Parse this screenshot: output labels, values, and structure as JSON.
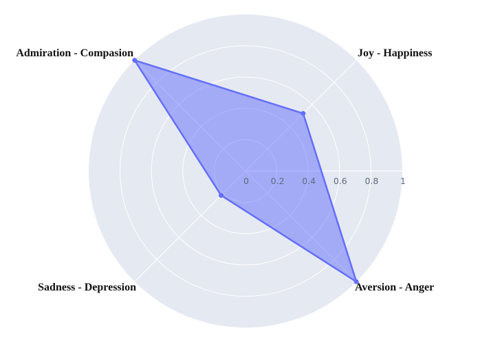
{
  "chart_data": {
    "type": "radar",
    "axes": [
      "Joy - Happiness",
      "Admiration - Compasion",
      "Sadness - Depression",
      "Aversion - Anger"
    ],
    "values": [
      0.52,
      1.0,
      0.22,
      1.0
    ],
    "radial_range": [
      0,
      1
    ],
    "radial_ticks": [
      "0",
      "0.2",
      "0.4",
      "0.6",
      "0.8",
      "1"
    ],
    "grid": true,
    "colors": {
      "background": "#e5e9f2",
      "grid": "#ffffff",
      "fill": "rgba(99,110,250,0.5)",
      "line": "#636efa",
      "tick_text": "#5d6b7e"
    }
  }
}
